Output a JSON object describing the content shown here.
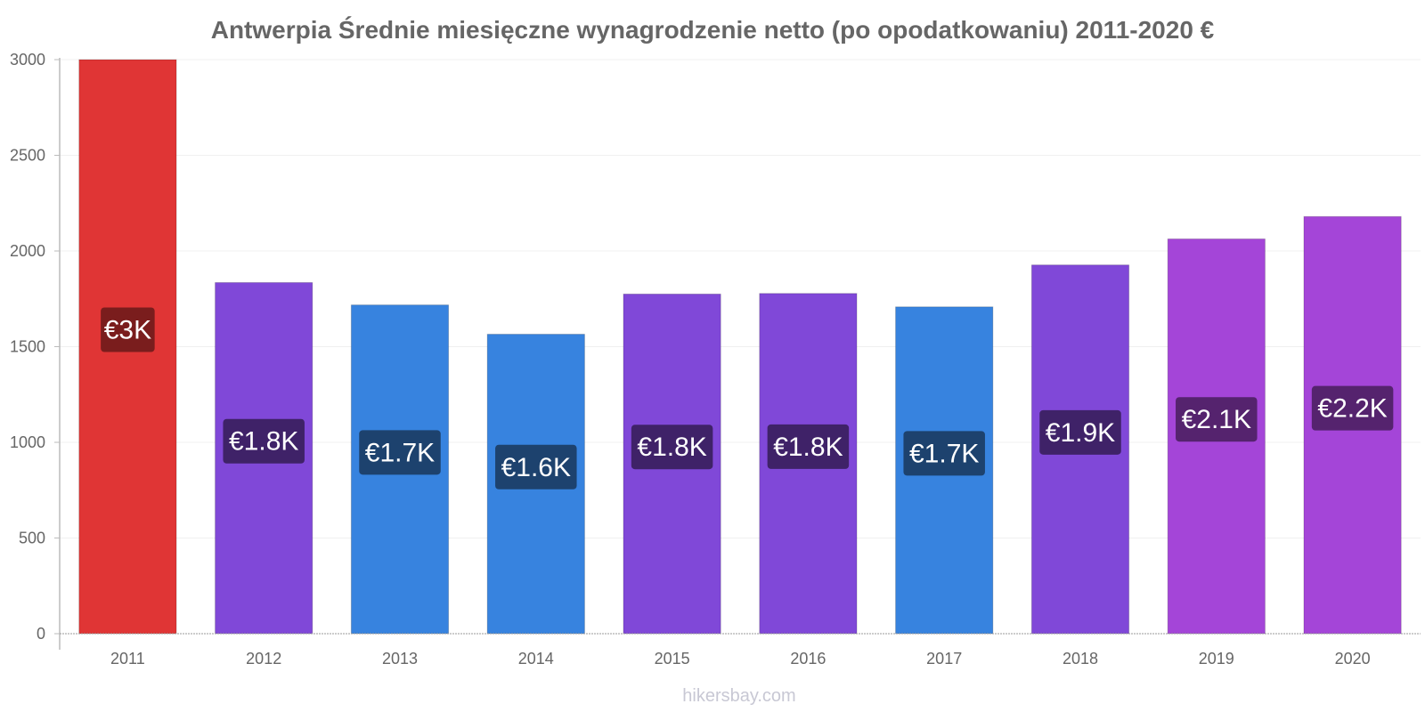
{
  "chart_data": {
    "type": "bar",
    "title": "Antwerpia Średnie miesięczne wynagrodzenie netto (po opodatkowaniu) 2011-2020 €",
    "categories": [
      "2011",
      "2012",
      "2013",
      "2014",
      "2015",
      "2016",
      "2017",
      "2018",
      "2019",
      "2020"
    ],
    "values": [
      3000,
      1835,
      1718,
      1565,
      1775,
      1778,
      1708,
      1927,
      2063,
      2180
    ],
    "data_labels": [
      "€3K",
      "€1.8K",
      "€1.7K",
      "€1.6K",
      "€1.8K",
      "€1.8K",
      "€1.7K",
      "€1.9K",
      "€2.1K",
      "€2.2K"
    ],
    "bar_colors": [
      "#e03535",
      "#8048d8",
      "#3783df",
      "#3783df",
      "#8048d8",
      "#8048d8",
      "#3783df",
      "#8048d8",
      "#a445d8",
      "#a445d8"
    ],
    "label_colors": [
      "#7a1d1d",
      "#3f2268",
      "#1d426e",
      "#1d426e",
      "#3f2268",
      "#3f2268",
      "#1d426e",
      "#3f2268",
      "#55236e",
      "#55236e"
    ],
    "yticks": [
      "0",
      "500",
      "1000",
      "1500",
      "2000",
      "2500",
      "3000"
    ],
    "ylim": [
      0,
      3000
    ],
    "xlabel": "",
    "ylabel": "",
    "grid": true
  },
  "watermark": "hikersbay.com"
}
